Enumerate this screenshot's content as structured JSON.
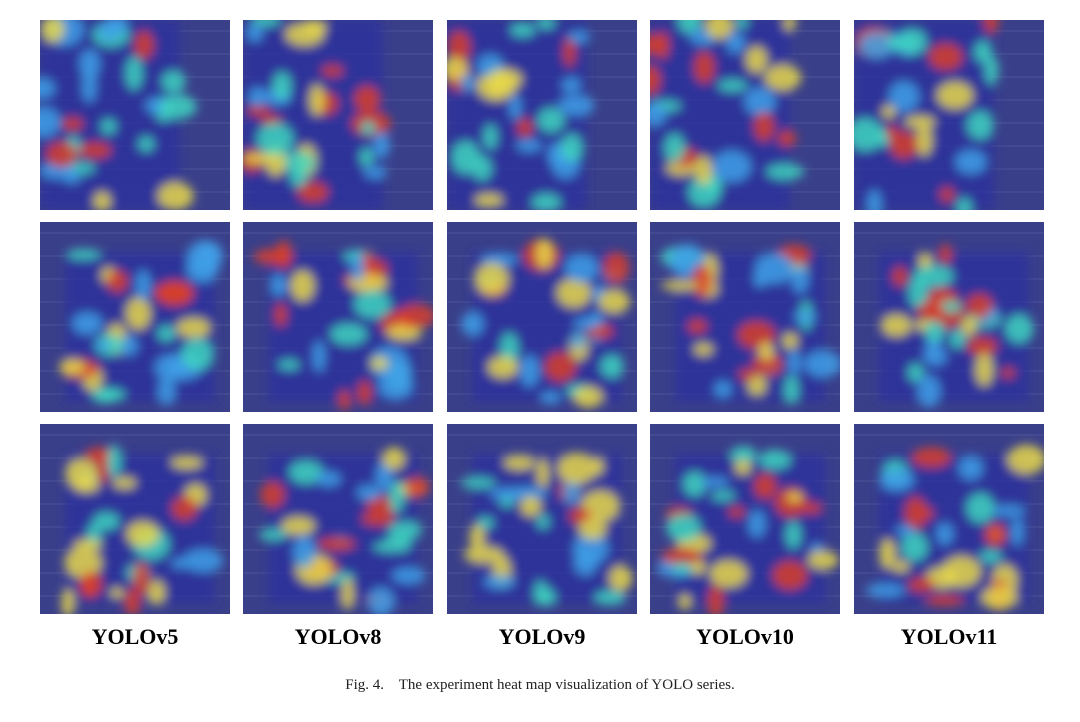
{
  "figure": {
    "columns": [
      {
        "label": "YOLOv5"
      },
      {
        "label": "YOLOv8"
      },
      {
        "label": "YOLOv9"
      },
      {
        "label": "YOLOv10"
      },
      {
        "label": "YOLOv11"
      }
    ],
    "rows": 3,
    "caption_prefix": "Fig. 4.",
    "caption_text": "The experiment heat map visualization of YOLO series.",
    "colors": {
      "background_satellite": "#3a3f8a",
      "heat_cold": "#2b2f9e",
      "heat_cool": "#3fa0e8",
      "heat_mid": "#3fd6c0",
      "heat_warm": "#e8d84a",
      "heat_hot": "#d8402a"
    }
  }
}
